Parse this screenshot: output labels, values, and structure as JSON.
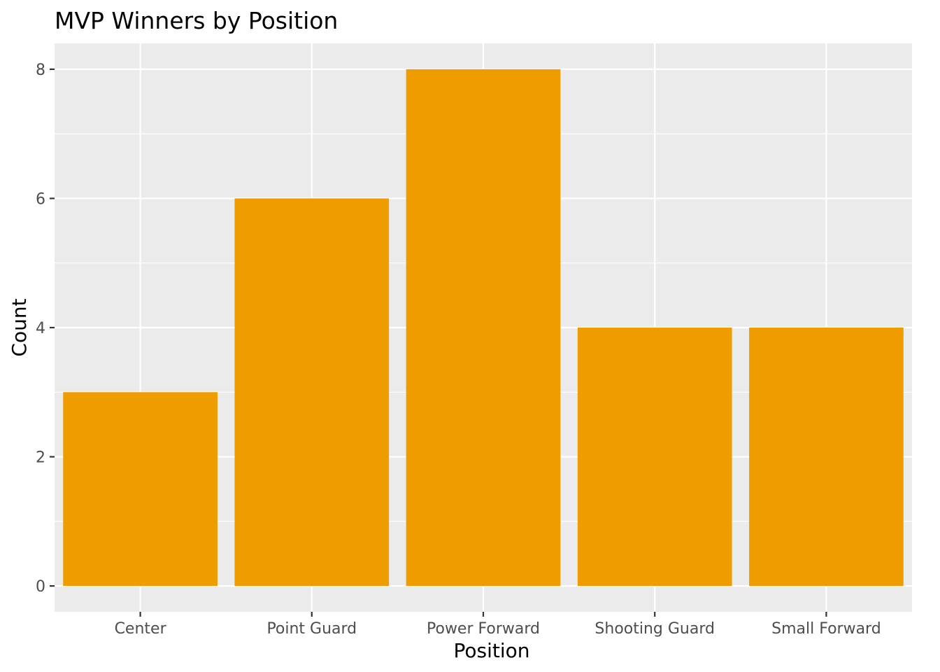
{
  "chart_data": {
    "type": "bar",
    "title": "MVP Winners by Position",
    "xlabel": "Position",
    "ylabel": "Count",
    "categories": [
      "Center",
      "Point Guard",
      "Power Forward",
      "Shooting Guard",
      "Small Forward"
    ],
    "values": [
      3,
      6,
      8,
      4,
      4
    ],
    "ylim": [
      -0.4,
      8.4
    ],
    "yticks": [
      0,
      2,
      4,
      6,
      8
    ],
    "ytick_labels": [
      "0",
      "2",
      "4",
      "6",
      "8"
    ],
    "grid": true,
    "legend": "none"
  },
  "colors": {
    "bar_fill": "#EE9C00",
    "panel_background": "#EBEBEB",
    "grid_line": "#FFFFFF",
    "tick_mark": "#333333",
    "tick_text": "#4D4D4D"
  }
}
